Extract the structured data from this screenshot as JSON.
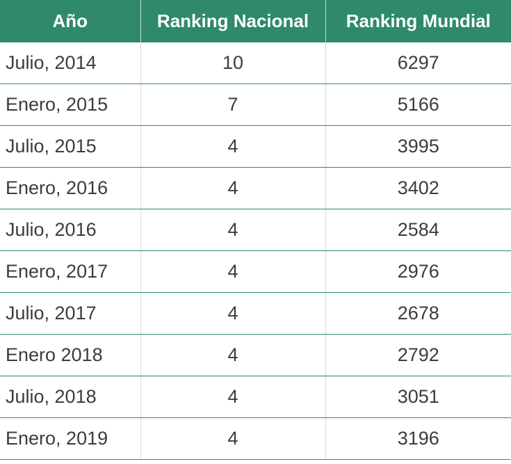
{
  "table": {
    "headers": [
      "Año",
      "Ranking Nacional",
      "Ranking Mundial"
    ],
    "rows": [
      [
        "Julio, 2014",
        "10",
        "6297"
      ],
      [
        "Enero, 2015",
        "7",
        "5166"
      ],
      [
        "Julio, 2015",
        "4",
        "3995"
      ],
      [
        "Enero, 2016",
        "4",
        "3402"
      ],
      [
        "Julio, 2016",
        "4",
        "2584"
      ],
      [
        "Enero, 2017",
        "4",
        "2976"
      ],
      [
        "Julio, 2017",
        "4",
        "2678"
      ],
      [
        "Enero 2018",
        "4",
        "2792"
      ],
      [
        "Julio, 2018",
        "4",
        "3051"
      ],
      [
        "Enero, 2019",
        "4",
        "3196"
      ]
    ]
  },
  "colors": {
    "header_bg": "#2e8a6b",
    "header_text": "#ffffff",
    "row_divider": "#2e8a6b",
    "cell_text": "#3c3c3c"
  }
}
